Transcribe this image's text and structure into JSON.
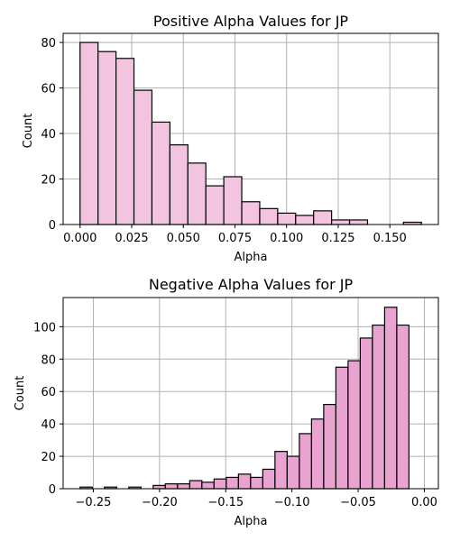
{
  "chart_data": [
    {
      "type": "bar",
      "title": "Positive Alpha Values for JP",
      "xlabel": "Alpha",
      "ylabel": "Count",
      "color": "#f2c4e0",
      "bin_edges": [
        0.0,
        0.0087,
        0.0174,
        0.0261,
        0.0348,
        0.0435,
        0.0522,
        0.0609,
        0.0696,
        0.0783,
        0.087,
        0.0957,
        0.1044,
        0.1131,
        0.1218,
        0.1305,
        0.1392,
        0.1479,
        0.1566,
        0.1653
      ],
      "values": [
        80,
        76,
        73,
        59,
        45,
        35,
        27,
        17,
        21,
        10,
        7,
        5,
        4,
        6,
        2,
        2,
        0,
        0,
        1
      ],
      "xlim": [
        -0.0082,
        0.1735
      ],
      "ylim": [
        0,
        84
      ],
      "xticks": [
        0.0,
        0.025,
        0.05,
        0.075,
        0.1,
        0.125,
        0.15
      ],
      "xtick_labels": [
        "0.000",
        "0.025",
        "0.050",
        "0.075",
        "0.100",
        "0.125",
        "0.150"
      ],
      "yticks": [
        0,
        20,
        40,
        60,
        80
      ],
      "ytick_labels": [
        "0",
        "20",
        "40",
        "60",
        "80"
      ],
      "grid": true
    },
    {
      "type": "bar",
      "title": "Negative Alpha Values for JP",
      "xlabel": "Alpha",
      "ylabel": "Count",
      "color": "#e8a3d0",
      "bin_edges": [
        -0.26,
        -0.2508,
        -0.2416,
        -0.2324,
        -0.2232,
        -0.214,
        -0.2048,
        -0.1956,
        -0.1864,
        -0.1772,
        -0.168,
        -0.1588,
        -0.1496,
        -0.1404,
        -0.1312,
        -0.122,
        -0.1128,
        -0.1036,
        -0.0944,
        -0.0852,
        -0.076,
        -0.0668,
        -0.0576,
        -0.0484,
        -0.0392,
        -0.03,
        -0.0208,
        -0.0116,
        -0.0024
      ],
      "values": [
        1,
        0,
        1,
        0,
        1,
        0,
        2,
        3,
        3,
        5,
        4,
        6,
        7,
        9,
        7,
        12,
        23,
        20,
        34,
        43,
        52,
        75,
        79,
        93,
        101,
        112,
        101,
        0
      ],
      "xlim": [
        -0.2728,
        0.0106
      ],
      "ylim": [
        0,
        118
      ],
      "xticks": [
        -0.25,
        -0.2,
        -0.15,
        -0.1,
        -0.05,
        0.0
      ],
      "xtick_labels": [
        "−0.25",
        "−0.20",
        "−0.15",
        "−0.10",
        "−0.05",
        "0.00"
      ],
      "yticks": [
        0,
        20,
        40,
        60,
        80,
        100
      ],
      "ytick_labels": [
        "0",
        "20",
        "40",
        "60",
        "80",
        "100"
      ],
      "grid": true
    }
  ]
}
